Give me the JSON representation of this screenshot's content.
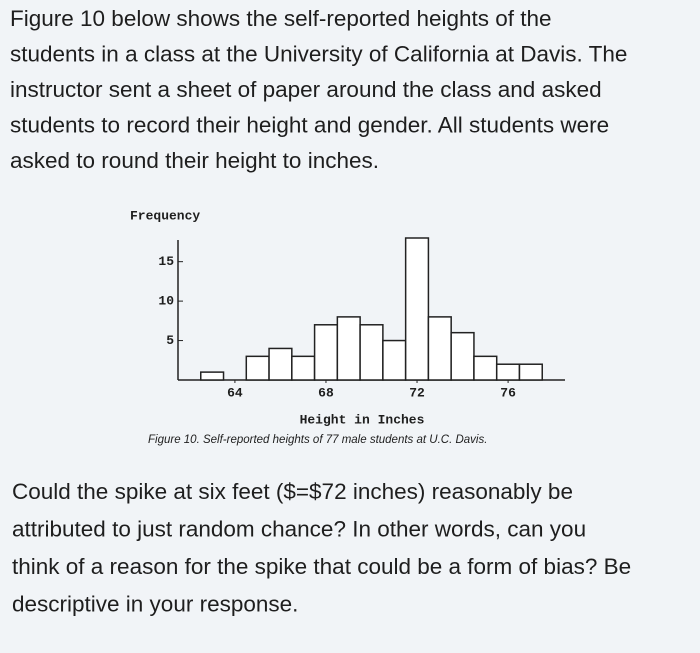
{
  "paragraph": {
    "lines": [
      "Figure 10 below shows the self-reported heights of the",
      "students in a class at the University of California at Davis. The",
      "instructor sent a sheet of paper around the class and asked",
      "students to record their height and gender. All students were",
      "asked to round their height to inches."
    ]
  },
  "chart_data": {
    "type": "histogram",
    "y_label": "Frequency",
    "x_label": "Height in Inches",
    "caption": "Figure 10. Self-reported heights of 77 male students at U.C. Davis.",
    "bins": [
      62.5,
      63.5,
      64.5,
      65.5,
      66.5,
      67.5,
      68.5,
      69.5,
      70.5,
      71.5,
      72.5,
      73.5,
      74.5,
      75.5,
      76.5,
      77.5
    ],
    "counts": [
      1,
      0,
      3,
      4,
      3,
      7,
      8,
      7,
      5,
      18,
      8,
      6,
      3,
      2,
      2
    ],
    "color": "#ffffff",
    "xlim": [
      61.5,
      78.5
    ],
    "ylim": [
      0,
      18
    ],
    "xticks": [
      64,
      68,
      72,
      76
    ],
    "yticks": [
      5,
      10,
      15
    ]
  },
  "question": {
    "lines": [
      "Could the spike at six feet ($=$72 inches) reasonably be",
      "attributed to just random chance? In other words, can you",
      "think of a reason for the spike that could be a form of bias? Be",
      "descriptive in your response."
    ]
  }
}
